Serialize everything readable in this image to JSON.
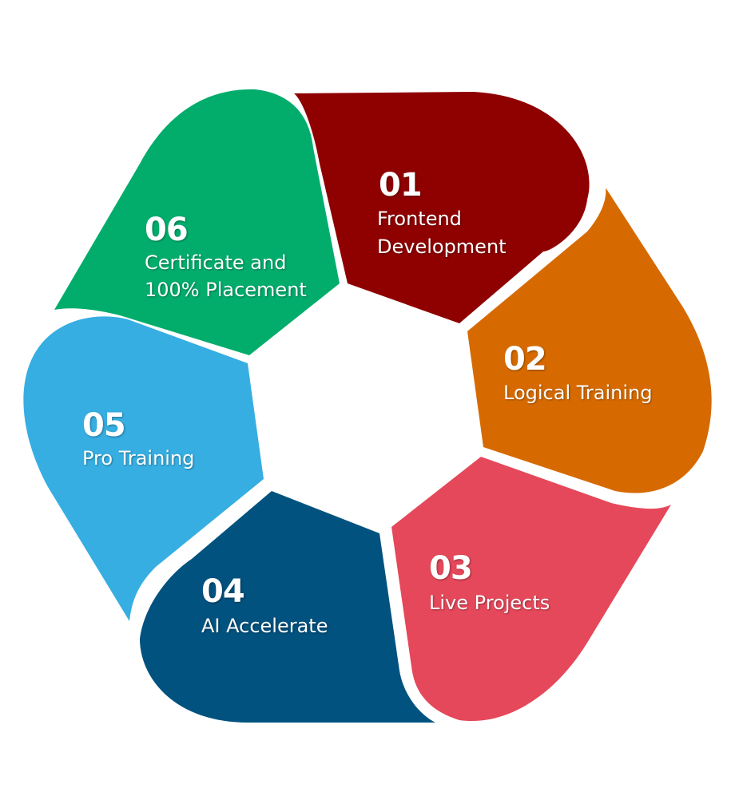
{
  "segments": [
    {
      "number": "01",
      "lines": [
        "Frontend",
        "Development"
      ],
      "color": "#8f0000"
    },
    {
      "number": "02",
      "lines": [
        "Logical Training"
      ],
      "color": "#d66a00"
    },
    {
      "number": "03",
      "lines": [
        "Live Projects"
      ],
      "color": "#e5485a"
    },
    {
      "number": "04",
      "lines": [
        "AI Accelerate"
      ],
      "color": "#02527f"
    },
    {
      "number": "05",
      "lines": [
        "Pro Training"
      ],
      "color": "#36aee2"
    },
    {
      "number": "06",
      "lines": [
        "Certificate and",
        "100% Placement"
      ],
      "color": "#02ad6c"
    }
  ]
}
